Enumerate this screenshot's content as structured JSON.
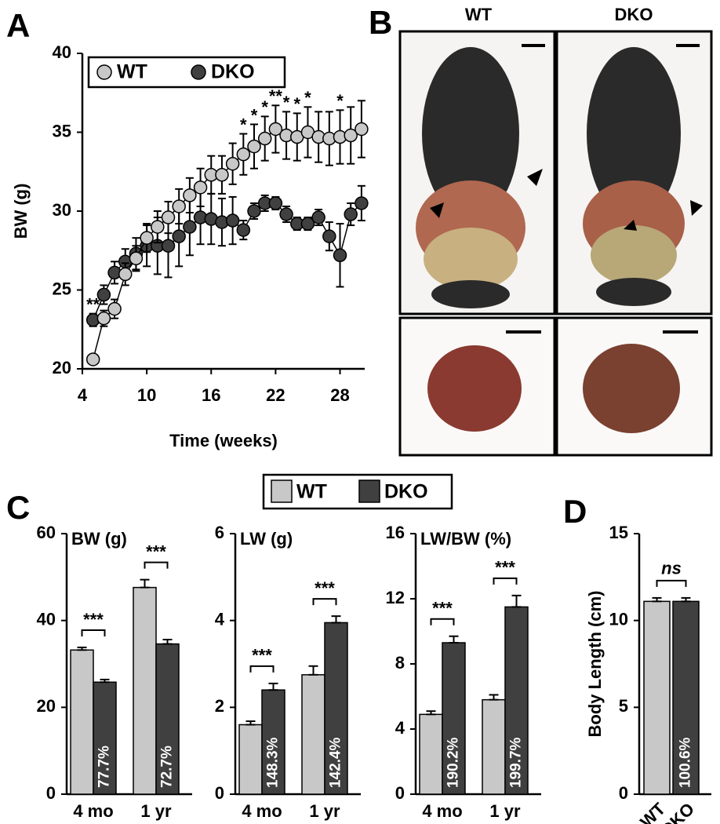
{
  "photo_panel": {
    "label": "B",
    "columns": [
      "WT",
      "DKO"
    ]
  },
  "chart_data": [
    {
      "type": "line",
      "panel_label": "A",
      "x_label": "Time (weeks)",
      "y_label": "BW (g)",
      "legend": "top-left",
      "x": [
        5,
        6,
        7,
        8,
        9,
        10,
        11,
        12,
        13,
        14,
        15,
        16,
        17,
        18,
        19,
        20,
        21,
        22,
        23,
        24,
        25,
        26,
        27,
        28,
        29,
        30
      ],
      "xlim": [
        4,
        30.3
      ],
      "xticks": [
        4,
        10,
        16,
        22,
        28
      ],
      "ylim": [
        20,
        40
      ],
      "yticks": [
        20,
        25,
        30,
        35,
        40
      ],
      "series": [
        {
          "name": "WT",
          "color": "#c8c8c8",
          "values": [
            20.6,
            23.2,
            23.8,
            26.0,
            27.0,
            28.3,
            29.0,
            29.6,
            30.3,
            31.0,
            31.5,
            32.3,
            32.3,
            33.0,
            33.6,
            34.1,
            34.6,
            35.2,
            34.8,
            34.7,
            35.0,
            34.7,
            34.6,
            34.7,
            34.8,
            35.2
          ],
          "errors": [
            0.3,
            0.5,
            0.6,
            0.7,
            0.8,
            0.9,
            1.0,
            1.0,
            1.1,
            1.1,
            1.2,
            1.2,
            1.2,
            1.3,
            1.3,
            1.4,
            1.4,
            1.5,
            1.5,
            1.5,
            1.6,
            1.6,
            1.7,
            1.7,
            1.8,
            1.8
          ]
        },
        {
          "name": "DKO",
          "color": "#404040",
          "values": [
            23.1,
            24.7,
            26.1,
            26.8,
            27.3,
            27.8,
            27.8,
            27.8,
            28.4,
            29.0,
            29.6,
            29.5,
            29.3,
            29.4,
            28.8,
            30.0,
            30.5,
            30.5,
            29.8,
            29.2,
            29.2,
            29.6,
            28.4,
            27.2,
            29.8,
            30.5
          ],
          "errors": [
            0.4,
            0.6,
            0.7,
            0.8,
            1.0,
            1.3,
            1.8,
            2.0,
            1.9,
            1.8,
            1.7,
            1.6,
            1.5,
            1.5,
            0.6,
            0.5,
            0.5,
            0.4,
            0.5,
            0.4,
            0.4,
            0.5,
            0.9,
            2.0,
            0.7,
            1.1
          ]
        }
      ],
      "significance": [
        "**",
        null,
        null,
        null,
        null,
        null,
        null,
        null,
        null,
        null,
        null,
        null,
        null,
        null,
        "*",
        "*",
        "*",
        "**",
        "*",
        "*",
        "*",
        null,
        null,
        "*",
        null,
        null
      ]
    },
    {
      "type": "bar_panels",
      "panel_label": "C",
      "categories": [
        "4 mo",
        "1 yr"
      ],
      "series": [
        {
          "name": "WT",
          "color": "#c8c8c8"
        },
        {
          "name": "DKO",
          "color": "#404040"
        }
      ],
      "panels": [
        {
          "title": "BW (g)",
          "ylim": [
            0,
            60
          ],
          "yticks": [
            0,
            20,
            40,
            60
          ],
          "values": [
            [
              33.2,
              47.6
            ],
            [
              25.8,
              34.6
            ]
          ],
          "errors": [
            [
              0.6,
              1.8
            ],
            [
              0.6,
              1.0
            ]
          ],
          "ratio_labels": [
            "77.7%",
            "72.7%"
          ],
          "significance": [
            "***",
            "***"
          ]
        },
        {
          "title": "LW (g)",
          "ylim": [
            0,
            6
          ],
          "yticks": [
            0,
            2,
            4,
            6
          ],
          "values": [
            [
              1.6,
              2.75
            ],
            [
              2.4,
              3.95
            ]
          ],
          "errors": [
            [
              0.08,
              0.2
            ],
            [
              0.15,
              0.15
            ]
          ],
          "ratio_labels": [
            "148.3%",
            "142.4%"
          ],
          "significance": [
            "***",
            "***"
          ]
        },
        {
          "title": "LW/BW (%)",
          "ylim": [
            0,
            16
          ],
          "yticks": [
            0,
            4,
            8,
            12,
            16
          ],
          "values": [
            [
              4.9,
              5.8
            ],
            [
              9.3,
              11.5
            ]
          ],
          "errors": [
            [
              0.2,
              0.3
            ],
            [
              0.4,
              0.7
            ]
          ],
          "ratio_labels": [
            "190.2%",
            "199.7%"
          ],
          "significance": [
            "***",
            "***"
          ]
        }
      ]
    },
    {
      "type": "bar",
      "panel_label": "D",
      "y_label": "Body Length (cm)",
      "categories": [
        "WT",
        "DKO"
      ],
      "values": [
        11.1,
        11.1
      ],
      "errors": [
        0.2,
        0.2
      ],
      "colors": [
        "#c8c8c8",
        "#404040"
      ],
      "ratio_labels": [
        null,
        "100.6%"
      ],
      "significance": "ns",
      "ylim": [
        0,
        15
      ],
      "yticks": [
        0,
        5,
        10,
        15
      ]
    }
  ]
}
